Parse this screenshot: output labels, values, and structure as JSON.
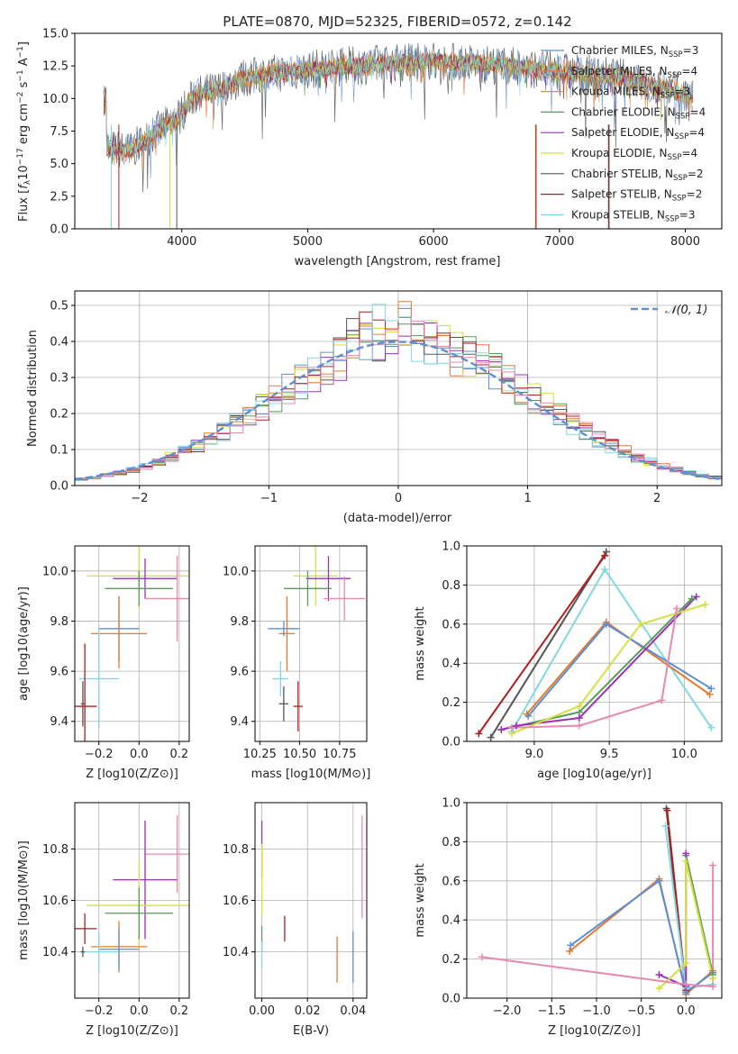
{
  "page_title": "PLATE=0870, MJD=52325, FIBERID=0572, z=0.142",
  "colors": {
    "cm": "#5b8fd8",
    "sm": "#e8782c",
    "km": "#c69a3a",
    "ce": "#5a9a5a",
    "se": "#9b30b8",
    "ke": "#d4e040",
    "cs": "#555555",
    "ss": "#b01c1c",
    "ks": "#80d8e0",
    "pink": "#e887b0",
    "grid": "#b0b0b0",
    "normal": "#5b8fd8"
  },
  "chart_data": [
    {
      "id": "spectrum",
      "type": "line",
      "title": "PLATE=0870, MJD=52325, FIBERID=0572, z=0.142",
      "xlabel": "wavelength [Angstrom, rest frame]",
      "ylabel_html": "Flux [f_λ 10^-17 erg cm^-2 s^-1 A^-1]",
      "xlim": [
        3150,
        8290
      ],
      "ylim": [
        0,
        15
      ],
      "xticks": [
        4000,
        5000,
        6000,
        7000,
        8000
      ],
      "yticks": [
        0.0,
        2.5,
        5.0,
        7.5,
        10.0,
        12.5,
        15.0
      ],
      "ytick_labels": [
        "0.0",
        "2.5",
        "5.0",
        "7.5",
        "10.0",
        "12.5",
        "15.0"
      ],
      "grid": false,
      "legend_position": "top-right",
      "spectrum_knots": [
        [
          3400,
          6.2
        ],
        [
          3600,
          6.0
        ],
        [
          3800,
          7.5
        ],
        [
          3950,
          8.3
        ],
        [
          4100,
          10.2
        ],
        [
          4300,
          10.7
        ],
        [
          4500,
          11.6
        ],
        [
          4800,
          12.0
        ],
        [
          5100,
          12.3
        ],
        [
          5500,
          12.6
        ],
        [
          6000,
          12.9
        ],
        [
          6500,
          12.6
        ],
        [
          7000,
          12.1
        ],
        [
          7500,
          11.6
        ],
        [
          8050,
          10.2
        ]
      ],
      "series": [
        {
          "name": "Chabrier MILES, N",
          "sub": "SSP",
          "eq": "=3",
          "color_key": "cm"
        },
        {
          "name": "Salpeter MILES, N",
          "sub": "SSP",
          "eq": "=4",
          "color_key": "sm"
        },
        {
          "name": "Kroupa MILES, N",
          "sub": "SSP",
          "eq": "=3",
          "color_key": "km"
        },
        {
          "name": "Chabrier ELODIE, N",
          "sub": "SSP",
          "eq": "=4",
          "color_key": "ce"
        },
        {
          "name": "Salpeter ELODIE, N",
          "sub": "SSP",
          "eq": "=4",
          "color_key": "se"
        },
        {
          "name": "Kroupa ELODIE, N",
          "sub": "SSP",
          "eq": "=4",
          "color_key": "ke"
        },
        {
          "name": "Chabrier STELIB, N",
          "sub": "SSP",
          "eq": "=2",
          "color_key": "cs"
        },
        {
          "name": "Salpeter STELIB, N",
          "sub": "SSP",
          "eq": "=2",
          "color_key": "ss"
        },
        {
          "name": "Kroupa STELIB, N",
          "sub": "SSP",
          "eq": "=3",
          "color_key": "ks"
        }
      ]
    },
    {
      "id": "residuals",
      "type": "bar",
      "xlabel": "(data-model)/error",
      "ylabel": "Normed distribution",
      "xlim": [
        -2.5,
        2.5
      ],
      "ylim": [
        0,
        0.54
      ],
      "xticks": [
        -2,
        -1,
        0,
        1,
        2
      ],
      "xtick_labels": [
        "−2",
        "−1",
        "0",
        "1",
        "2"
      ],
      "yticks": [
        0.0,
        0.1,
        0.2,
        0.3,
        0.4,
        0.5
      ],
      "ytick_labels": [
        "0.0",
        "0.1",
        "0.2",
        "0.3",
        "0.4",
        "0.5"
      ],
      "grid": true,
      "bin_width": 0.1,
      "normal_label": "𝒩(0, 1)",
      "legend_position": "top-right",
      "histogram_colors": [
        "cm",
        "sm",
        "ce",
        "se",
        "ke",
        "cs",
        "ss",
        "ks",
        "pink"
      ]
    },
    {
      "id": "age_vs_Z",
      "type": "scatter",
      "xlabel": "Z [log10(Z/Z⊙)]",
      "ylabel": "age  [log10(age/yr)]",
      "xlim": [
        -0.32,
        0.25
      ],
      "ylim": [
        9.32,
        10.1
      ],
      "xticks": [
        -0.2,
        0.0,
        0.2
      ],
      "xtick_labels": [
        "−0.2",
        "0.0",
        "0.2"
      ],
      "yticks": [
        9.4,
        9.6,
        9.8,
        10.0
      ],
      "ytick_labels": [
        "9.4",
        "9.6",
        "9.8",
        "10.0"
      ],
      "grid": true,
      "points": [
        {
          "c": "ke",
          "x": 0.0,
          "xerr": 0.26,
          "y": 9.98,
          "yerr": 0.13
        },
        {
          "c": "se",
          "x": 0.03,
          "xerr": 0.16,
          "y": 9.97,
          "yerr": 0.08
        },
        {
          "c": "ce",
          "x": 0.0,
          "xerr": 0.17,
          "y": 9.93,
          "yerr": 0.07
        },
        {
          "c": "pink",
          "x": 0.19,
          "xerr": 0.16,
          "y": 9.89,
          "yerr": 0.17
        },
        {
          "c": "cm",
          "x": -0.1,
          "xerr": 0.1,
          "y": 9.77,
          "yerr": 0.13
        },
        {
          "c": "sm",
          "x": -0.1,
          "xerr": 0.14,
          "y": 9.75,
          "yerr": 0.14
        },
        {
          "c": "ks",
          "x": -0.2,
          "xerr": 0.1,
          "y": 9.57,
          "yerr": 0.2
        },
        {
          "c": "cs",
          "x": -0.28,
          "xerr": 0.01,
          "y": 9.47,
          "yerr": 0.09
        },
        {
          "c": "ss",
          "x": -0.27,
          "xerr": 0.06,
          "y": 9.46,
          "yerr": 0.25
        }
      ]
    },
    {
      "id": "age_vs_mass",
      "type": "scatter",
      "xlabel": "mass [log10(M/M⊙)]",
      "xlim": [
        10.22,
        10.92
      ],
      "ylim": [
        9.32,
        10.1
      ],
      "xticks": [
        10.25,
        10.5,
        10.75
      ],
      "xtick_labels": [
        "10.25",
        "10.50",
        "10.75"
      ],
      "yticks": [
        9.4,
        9.6,
        9.8,
        10.0
      ],
      "ytick_labels": [
        "9.4",
        "9.6",
        "9.8",
        "10.0"
      ],
      "grid": true,
      "points": [
        {
          "c": "ke",
          "x": 10.6,
          "xerr": 0.14,
          "y": 9.98,
          "yerr": 0.12
        },
        {
          "c": "se",
          "x": 10.68,
          "xerr": 0.14,
          "y": 9.97,
          "yerr": 0.09
        },
        {
          "c": "ce",
          "x": 10.55,
          "xerr": 0.15,
          "y": 9.93,
          "yerr": 0.07
        },
        {
          "c": "pink",
          "x": 10.78,
          "xerr": 0.13,
          "y": 9.89,
          "yerr": 0.09
        },
        {
          "c": "cm",
          "x": 10.4,
          "xerr": 0.1,
          "y": 9.77,
          "yerr": 0.03
        },
        {
          "c": "sm",
          "x": 10.42,
          "xerr": 0.05,
          "y": 9.75,
          "yerr": 0.15
        },
        {
          "c": "ks",
          "x": 10.38,
          "xerr": 0.05,
          "y": 9.57,
          "yerr": 0.07
        },
        {
          "c": "cs",
          "x": 10.4,
          "xerr": 0.03,
          "y": 9.47,
          "yerr": 0.07
        },
        {
          "c": "ss",
          "x": 10.49,
          "xerr": 0.03,
          "y": 9.46,
          "yerr": 0.1
        }
      ]
    },
    {
      "id": "weight_vs_age",
      "type": "line",
      "xlabel": "age  [log10(age/yr)]",
      "ylabel": "mass weight",
      "xlim": [
        8.55,
        10.25
      ],
      "ylim": [
        0,
        1
      ],
      "xticks": [
        9.0,
        9.5,
        10.0
      ],
      "xtick_labels": [
        "9.0",
        "9.5",
        "10.0"
      ],
      "yticks": [
        0.0,
        0.2,
        0.4,
        0.6,
        0.8,
        1.0
      ],
      "ytick_labels": [
        "0.0",
        "0.2",
        "0.4",
        "0.6",
        "0.8",
        "1.0"
      ],
      "grid": true,
      "series": [
        {
          "c": "cs",
          "x": [
            8.71,
            9.48
          ],
          "y": [
            0.02,
            0.97
          ]
        },
        {
          "c": "ss",
          "x": [
            8.63,
            9.47
          ],
          "y": [
            0.04,
            0.95
          ]
        },
        {
          "c": "ks",
          "x": [
            8.85,
            9.47,
            10.18
          ],
          "y": [
            0.05,
            0.88,
            0.07
          ]
        },
        {
          "c": "sm",
          "x": [
            8.95,
            9.48,
            10.17
          ],
          "y": [
            0.14,
            0.61,
            0.24
          ]
        },
        {
          "c": "cm",
          "x": [
            8.96,
            9.48,
            10.18
          ],
          "y": [
            0.13,
            0.6,
            0.27
          ]
        },
        {
          "c": "ce",
          "x": [
            8.78,
            9.3,
            10.05
          ],
          "y": [
            0.06,
            0.15,
            0.73
          ]
        },
        {
          "c": "se",
          "x": [
            8.78,
            8.88,
            9.3,
            10.08
          ],
          "y": [
            0.06,
            0.08,
            0.12,
            0.74
          ]
        },
        {
          "c": "ke",
          "x": [
            8.85,
            9.3,
            9.71,
            10.14
          ],
          "y": [
            0.04,
            0.18,
            0.6,
            0.7
          ]
        },
        {
          "c": "pink",
          "x": [
            8.85,
            9.3,
            9.85,
            9.95
          ],
          "y": [
            0.07,
            0.08,
            0.21,
            0.68
          ]
        }
      ]
    },
    {
      "id": "mass_vs_Z",
      "type": "scatter",
      "xlabel": "Z [log10(Z/Z⊙)]",
      "ylabel": "mass [log10(M/M⊙)]",
      "xlim": [
        -0.32,
        0.25
      ],
      "ylim": [
        10.22,
        10.98
      ],
      "xticks": [
        -0.2,
        0.0,
        0.2
      ],
      "xtick_labels": [
        "−0.2",
        "0.0",
        "0.2"
      ],
      "yticks": [
        10.4,
        10.6,
        10.8
      ],
      "ytick_labels": [
        "10.4",
        "10.6",
        "10.8"
      ],
      "grid": true,
      "points": [
        {
          "c": "pink",
          "x": 0.19,
          "xerr": 0.16,
          "y": 10.78,
          "yerr": 0.15
        },
        {
          "c": "se",
          "x": 0.03,
          "xerr": 0.16,
          "y": 10.68,
          "yerr": 0.23
        },
        {
          "c": "ke",
          "x": 0.0,
          "xerr": 0.26,
          "y": 10.58,
          "yerr": 0.18
        },
        {
          "c": "ce",
          "x": 0.0,
          "xerr": 0.17,
          "y": 10.55,
          "yerr": 0.1
        },
        {
          "c": "ss",
          "x": -0.27,
          "xerr": 0.06,
          "y": 10.49,
          "yerr": 0.06
        },
        {
          "c": "sm",
          "x": -0.1,
          "xerr": 0.14,
          "y": 10.42,
          "yerr": 0.1
        },
        {
          "c": "cm",
          "x": -0.1,
          "xerr": 0.1,
          "y": 10.41,
          "yerr": 0.08
        },
        {
          "c": "ks",
          "x": -0.2,
          "xerr": 0.1,
          "y": 10.4,
          "yerr": 0.08
        },
        {
          "c": "cs",
          "x": -0.28,
          "xerr": 0.01,
          "y": 10.4,
          "yerr": 0.02
        }
      ]
    },
    {
      "id": "mass_vs_ebv",
      "type": "scatter",
      "xlabel": "E(B-V)",
      "xlim": [
        -0.003,
        0.046
      ],
      "ylim": [
        10.22,
        10.98
      ],
      "xticks": [
        0.0,
        0.02,
        0.04
      ],
      "xtick_labels": [
        "0.00",
        "0.02",
        "0.04"
      ],
      "yticks": [
        10.4,
        10.6,
        10.8
      ],
      "ytick_labels": [
        "10.4",
        "10.6",
        "10.8"
      ],
      "grid": true,
      "points": [
        {
          "c": "se",
          "x": 0.0,
          "y": 10.8,
          "yerr": 0.11
        },
        {
          "c": "ke",
          "x": 0.0,
          "y": 10.68,
          "yerr": 0.14
        },
        {
          "c": "ce",
          "x": 0.0,
          "y": 10.45,
          "yerr": 0.05
        },
        {
          "c": "ks",
          "x": 0.0,
          "y": 10.39,
          "yerr": 0.05
        },
        {
          "c": "ss",
          "x": 0.01,
          "y": 10.49,
          "yerr": 0.05
        },
        {
          "c": "sm",
          "x": 0.033,
          "y": 10.37,
          "yerr": 0.09
        },
        {
          "c": "cm",
          "x": 0.04,
          "y": 10.38,
          "yerr": 0.1
        },
        {
          "c": "pink",
          "x": 0.044,
          "y": 10.73,
          "yerr": 0.2
        }
      ]
    },
    {
      "id": "weight_vs_Z",
      "type": "line",
      "xlabel": "Z [log10(Z/Z⊙)]",
      "ylabel": "mass weight",
      "xlim": [
        -2.45,
        0.4
      ],
      "ylim": [
        0,
        1
      ],
      "xticks": [
        -2.0,
        -1.5,
        -1.0,
        -0.5,
        0.0
      ],
      "xtick_labels": [
        "−2.0",
        "−1.5",
        "−1.0",
        "−0.5",
        "0.0"
      ],
      "yticks": [
        0.0,
        0.2,
        0.4,
        0.6,
        0.8,
        1.0
      ],
      "ytick_labels": [
        "0.0",
        "0.2",
        "0.4",
        "0.6",
        "0.8",
        "1.0"
      ],
      "grid": true,
      "series": [
        {
          "c": "cs",
          "x": [
            -0.22,
            0.0
          ],
          "y": [
            0.97,
            0.02
          ]
        },
        {
          "c": "ss",
          "x": [
            -0.21,
            0.0
          ],
          "y": [
            0.96,
            0.04
          ]
        },
        {
          "c": "ks",
          "x": [
            -0.23,
            0.0,
            0.3
          ],
          "y": [
            0.88,
            0.05,
            0.07
          ]
        },
        {
          "c": "sm",
          "x": [
            -1.3,
            -0.3,
            0.0,
            0.3
          ],
          "y": [
            0.24,
            0.61,
            0.02,
            0.14
          ]
        },
        {
          "c": "cm",
          "x": [
            -1.29,
            -0.3,
            0.0,
            0.3
          ],
          "y": [
            0.27,
            0.6,
            0.03,
            0.13
          ]
        },
        {
          "c": "ce",
          "x": [
            0.0,
            0.3
          ],
          "y": [
            0.73,
            0.12
          ]
        },
        {
          "c": "se",
          "x": [
            -0.3,
            0.0,
            0.0
          ],
          "y": [
            0.12,
            0.06,
            0.74
          ]
        },
        {
          "c": "ke",
          "x": [
            -0.3,
            0.0,
            0.0,
            0.3
          ],
          "y": [
            0.05,
            0.18,
            0.7,
            0.1
          ]
        },
        {
          "c": "pink",
          "x": [
            -2.28,
            0.0,
            0.3,
            0.3
          ],
          "y": [
            0.21,
            0.07,
            0.06,
            0.68
          ]
        }
      ]
    }
  ]
}
